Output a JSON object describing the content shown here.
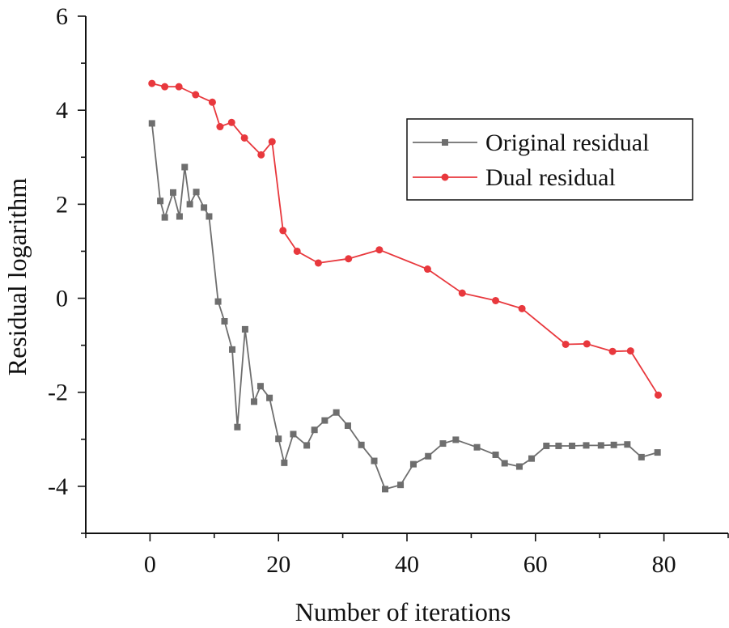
{
  "chart_data": {
    "type": "line",
    "title": "",
    "xlabel": "Number of iterations",
    "ylabel": "Residual logarithm",
    "xlim": [
      -10,
      90
    ],
    "ylim": [
      -5,
      6
    ],
    "xticks": [
      0,
      20,
      40,
      60,
      80
    ],
    "yticks": [
      6,
      4,
      2,
      0,
      -2,
      -4
    ],
    "x_tick_labels": [
      "0",
      "20",
      "40",
      "60",
      "80"
    ],
    "y_tick_labels": [
      "6",
      "4",
      "2",
      "0",
      "-2",
      "-4"
    ],
    "legend_position": "upper-right",
    "series": [
      {
        "name": "Original residual",
        "color": "#6e6e6e",
        "marker": "square",
        "x": [
          0.3,
          1.6,
          2.3,
          3.6,
          4.6,
          5.4,
          6.2,
          7.2,
          8.4,
          9.2,
          10.6,
          11.6,
          12.8,
          13.6,
          14.8,
          16.2,
          17.2,
          18.6,
          20.0,
          20.9,
          22.3,
          24.4,
          25.6,
          27.2,
          29.0,
          30.8,
          32.9,
          34.9,
          36.6,
          39.0,
          41.0,
          43.3,
          45.6,
          47.6,
          50.9,
          53.8,
          55.2,
          57.5,
          59.4,
          61.7,
          63.6,
          65.7,
          67.9,
          70.2,
          72.2,
          74.3,
          76.5,
          79.0
        ],
        "y": [
          3.72,
          2.07,
          1.72,
          2.25,
          1.74,
          2.79,
          2.0,
          2.26,
          1.93,
          1.74,
          -0.07,
          -0.49,
          -1.09,
          -2.74,
          -0.66,
          -2.2,
          -1.87,
          -2.12,
          -2.99,
          -3.5,
          -2.89,
          -3.13,
          -2.8,
          -2.6,
          -2.43,
          -2.71,
          -3.12,
          -3.46,
          -4.06,
          -3.97,
          -3.53,
          -3.36,
          -3.09,
          -3.01,
          -3.17,
          -3.33,
          -3.51,
          -3.58,
          -3.41,
          -3.14,
          -3.14,
          -3.14,
          -3.13,
          -3.13,
          -3.12,
          -3.11,
          -3.38,
          -3.28
        ]
      },
      {
        "name": "Dual residual",
        "color": "#e8383d",
        "marker": "circle",
        "x": [
          0.3,
          2.3,
          4.5,
          7.1,
          9.7,
          10.9,
          12.7,
          14.7,
          17.3,
          19.0,
          20.7,
          22.9,
          26.2,
          30.9,
          35.7,
          43.2,
          48.6,
          53.8,
          57.9,
          64.7,
          68.0,
          72.0,
          74.8,
          79.1
        ],
        "y": [
          4.57,
          4.5,
          4.5,
          4.33,
          4.17,
          3.65,
          3.74,
          3.41,
          3.05,
          3.33,
          1.44,
          1.0,
          0.75,
          0.84,
          1.03,
          0.62,
          0.11,
          -0.05,
          -0.22,
          -0.98,
          -0.97,
          -1.13,
          -1.12,
          -2.06
        ]
      }
    ]
  }
}
